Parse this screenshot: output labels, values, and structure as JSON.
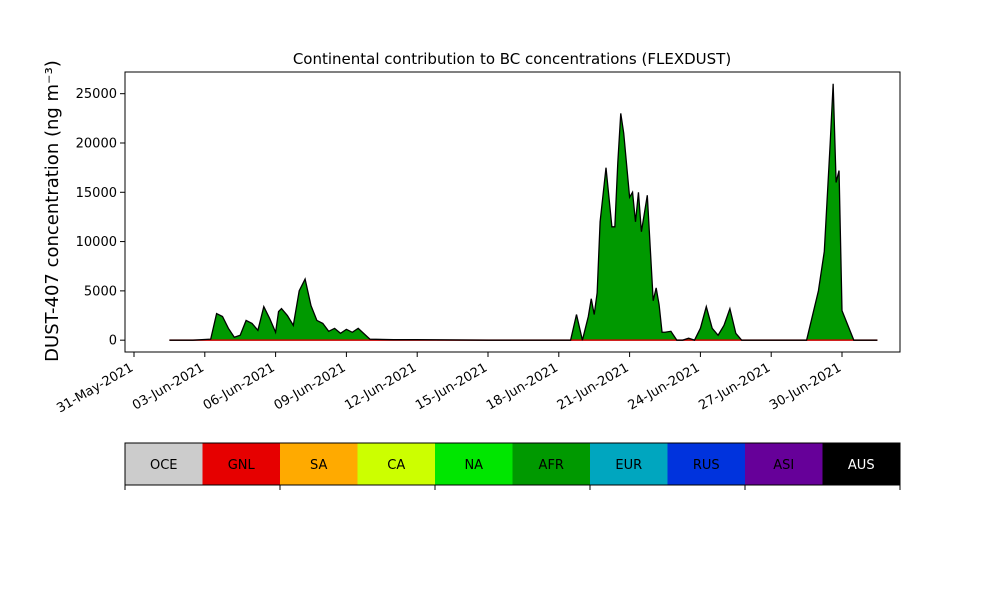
{
  "chart_data": {
    "type": "area",
    "title": "Continental contribution to BC concentrations (FLEXDUST)",
    "xlabel": "",
    "ylabel": "DUST-407 concentration (ng m⁻³)",
    "ylim": [
      -1200,
      27200
    ],
    "y_ticks": [
      0,
      5000,
      10000,
      15000,
      20000,
      25000
    ],
    "x_ticks": [
      "31-May-2021",
      "03-Jun-2021",
      "06-Jun-2021",
      "09-Jun-2021",
      "12-Jun-2021",
      "15-Jun-2021",
      "18-Jun-2021",
      "21-Jun-2021",
      "24-Jun-2021",
      "27-Jun-2021",
      "30-Jun-2021"
    ],
    "grid": false,
    "series": [
      {
        "name": "AFR",
        "color": "#009900",
        "dates": [
          "2021-06-01 12:00",
          "2021-06-02 12:00",
          "2021-06-03 06:00",
          "2021-06-03 12:00",
          "2021-06-03 18:00",
          "2021-06-04 00:00",
          "2021-06-04 06:00",
          "2021-06-04 12:00",
          "2021-06-04 18:00",
          "2021-06-05 00:00",
          "2021-06-05 06:00",
          "2021-06-05 12:00",
          "2021-06-05 18:00",
          "2021-06-06 00:00",
          "2021-06-06 03:00",
          "2021-06-06 06:00",
          "2021-06-06 12:00",
          "2021-06-06 18:00",
          "2021-06-07 00:00",
          "2021-06-07 06:00",
          "2021-06-07 12:00",
          "2021-06-07 18:00",
          "2021-06-08 00:00",
          "2021-06-08 06:00",
          "2021-06-08 12:00",
          "2021-06-08 18:00",
          "2021-06-09 00:00",
          "2021-06-09 06:00",
          "2021-06-09 12:00",
          "2021-06-10 00:00",
          "2021-06-11 00:00",
          "2021-06-12 00:00",
          "2021-06-15 00:00",
          "2021-06-18 00:00",
          "2021-06-18 12:00",
          "2021-06-18 18:00",
          "2021-06-19 00:00",
          "2021-06-19 06:00",
          "2021-06-19 09:00",
          "2021-06-19 12:00",
          "2021-06-19 15:00",
          "2021-06-19 18:00",
          "2021-06-20 00:00",
          "2021-06-20 06:00",
          "2021-06-20 09:00",
          "2021-06-20 12:00",
          "2021-06-20 15:00",
          "2021-06-20 18:00",
          "2021-06-21 00:00",
          "2021-06-21 03:00",
          "2021-06-21 06:00",
          "2021-06-21 09:00",
          "2021-06-21 12:00",
          "2021-06-21 18:00",
          "2021-06-22 00:00",
          "2021-06-22 03:00",
          "2021-06-22 06:00",
          "2021-06-22 09:00",
          "2021-06-22 12:00",
          "2021-06-22 18:00",
          "2021-06-23 00:00",
          "2021-06-23 06:00",
          "2021-06-23 12:00",
          "2021-06-23 18:00",
          "2021-06-24 00:00",
          "2021-06-24 06:00",
          "2021-06-24 12:00",
          "2021-06-24 18:00",
          "2021-06-25 00:00",
          "2021-06-25 06:00",
          "2021-06-25 12:00",
          "2021-06-25 18:00",
          "2021-06-26 00:00",
          "2021-06-27 00:00",
          "2021-06-28 00:00",
          "2021-06-28 12:00",
          "2021-06-29 00:00",
          "2021-06-29 06:00",
          "2021-06-29 12:00",
          "2021-06-29 15:00",
          "2021-06-29 18:00",
          "2021-06-29 21:00",
          "2021-06-30 00:00",
          "2021-06-30 06:00",
          "2021-06-30 12:00",
          "2021-07-01 00:00",
          "2021-07-01 12:00"
        ],
        "values": [
          0,
          0,
          100,
          2700,
          2400,
          1200,
          300,
          500,
          2000,
          1700,
          1000,
          3400,
          2200,
          800,
          2900,
          3200,
          2500,
          1500,
          5000,
          6200,
          3500,
          2000,
          1700,
          900,
          1200,
          700,
          1100,
          800,
          1200,
          100,
          50,
          50,
          0,
          0,
          0,
          2600,
          0,
          2400,
          4200,
          2600,
          4800,
          12000,
          17500,
          11500,
          11500,
          18000,
          23000,
          21000,
          14500,
          15000,
          12000,
          15000,
          11000,
          14700,
          4000,
          5300,
          3600,
          800,
          800,
          900,
          0,
          0,
          200,
          0,
          1200,
          3400,
          1200,
          500,
          1500,
          3200,
          700,
          0,
          0,
          0,
          0,
          0,
          5000,
          9000,
          20000,
          26000,
          16000,
          17200,
          3000,
          1500,
          0,
          0,
          0
        ]
      }
    ],
    "baseline_color": "#cc0000"
  },
  "legend": {
    "items": [
      {
        "label": "OCE",
        "color": "#cccccc",
        "text_color": "#000000"
      },
      {
        "label": "GNL",
        "color": "#e60000",
        "text_color": "#000000"
      },
      {
        "label": "SA",
        "color": "#ffaa00",
        "text_color": "#000000"
      },
      {
        "label": "CA",
        "color": "#ccff00",
        "text_color": "#000000"
      },
      {
        "label": "NA",
        "color": "#00e600",
        "text_color": "#000000"
      },
      {
        "label": "AFR",
        "color": "#009900",
        "text_color": "#000000"
      },
      {
        "label": "EUR",
        "color": "#00a6bf",
        "text_color": "#000000"
      },
      {
        "label": "RUS",
        "color": "#0033dd",
        "text_color": "#000000"
      },
      {
        "label": "ASI",
        "color": "#660099",
        "text_color": "#000000"
      },
      {
        "label": "AUS",
        "color": "#000000",
        "text_color": "#ffffff"
      }
    ]
  }
}
